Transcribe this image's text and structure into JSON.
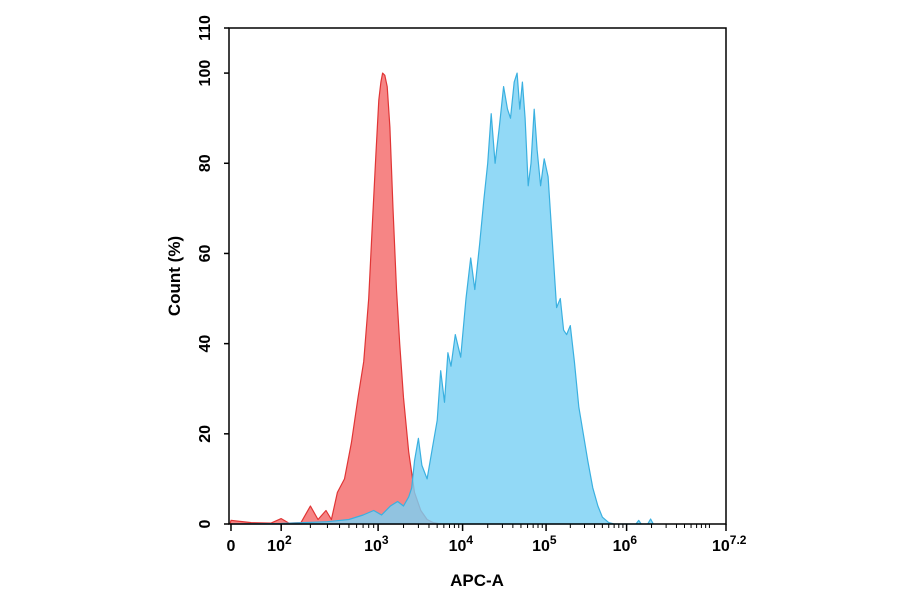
{
  "chart_data": {
    "type": "area",
    "xlabel": "APC-A",
    "ylabel": "Count (%)",
    "x_scale": "biexponential",
    "xlim": [
      -100,
      15848932
    ],
    "ylim": [
      0,
      110
    ],
    "y_ticks": [
      0,
      20,
      40,
      60,
      80,
      100,
      110
    ],
    "y_tick_labels": [
      "0",
      "20",
      "40",
      "60",
      "80",
      "100",
      "110"
    ],
    "x_ticks": [
      0,
      100,
      1000,
      10000,
      100000,
      1000000,
      15848932
    ],
    "x_tick_labels": [
      {
        "base": "0",
        "exp": ""
      },
      {
        "base": "10",
        "exp": "2"
      },
      {
        "base": "10",
        "exp": "3"
      },
      {
        "base": "10",
        "exp": "4"
      },
      {
        "base": "10",
        "exp": "5"
      },
      {
        "base": "10",
        "exp": "6"
      },
      {
        "base": "10",
        "exp": "7.2"
      }
    ],
    "grid": false,
    "legend": "none",
    "series": [
      {
        "color": "#f46a6a",
        "stroke": "#e03535",
        "points": [
          [
            -50,
            0
          ],
          [
            0,
            0.8
          ],
          [
            40,
            0.3
          ],
          [
            80,
            0.2
          ],
          [
            100,
            1.2
          ],
          [
            120,
            0.2
          ],
          [
            160,
            0.3
          ],
          [
            200,
            4
          ],
          [
            240,
            1
          ],
          [
            290,
            3
          ],
          [
            330,
            1
          ],
          [
            380,
            7
          ],
          [
            450,
            10
          ],
          [
            530,
            18
          ],
          [
            620,
            28
          ],
          [
            710,
            36
          ],
          [
            800,
            50
          ],
          [
            880,
            68
          ],
          [
            950,
            82
          ],
          [
            1020,
            94
          ],
          [
            1080,
            98
          ],
          [
            1130,
            100
          ],
          [
            1200,
            99.5
          ],
          [
            1280,
            97
          ],
          [
            1380,
            88
          ],
          [
            1500,
            70
          ],
          [
            1650,
            52
          ],
          [
            1800,
            40
          ],
          [
            2000,
            28
          ],
          [
            2300,
            16
          ],
          [
            2700,
            7
          ],
          [
            3200,
            3
          ],
          [
            3800,
            1
          ],
          [
            4500,
            0.3
          ],
          [
            5500,
            0
          ]
        ]
      },
      {
        "color": "#7ad1f4",
        "stroke": "#3ab0e0",
        "points": [
          [
            -50,
            0
          ],
          [
            100,
            0.1
          ],
          [
            300,
            0.5
          ],
          [
            500,
            1
          ],
          [
            700,
            2
          ],
          [
            900,
            3
          ],
          [
            1100,
            2
          ],
          [
            1400,
            4
          ],
          [
            1700,
            5
          ],
          [
            2000,
            4
          ],
          [
            2300,
            6
          ],
          [
            2500,
            8
          ],
          [
            2700,
            14
          ],
          [
            3000,
            19
          ],
          [
            3300,
            13
          ],
          [
            3800,
            10
          ],
          [
            4400,
            17
          ],
          [
            5000,
            23
          ],
          [
            5500,
            34
          ],
          [
            6100,
            27
          ],
          [
            6700,
            38
          ],
          [
            7300,
            35
          ],
          [
            8200,
            42
          ],
          [
            9500,
            37
          ],
          [
            11000,
            50
          ],
          [
            12500,
            59
          ],
          [
            14000,
            52
          ],
          [
            16000,
            62
          ],
          [
            18000,
            72
          ],
          [
            20000,
            80
          ],
          [
            22000,
            91
          ],
          [
            24500,
            80
          ],
          [
            27500,
            88
          ],
          [
            31000,
            97
          ],
          [
            34500,
            92
          ],
          [
            37500,
            90
          ],
          [
            41500,
            98
          ],
          [
            45000,
            100
          ],
          [
            48500,
            92
          ],
          [
            52000,
            98
          ],
          [
            56000,
            90
          ],
          [
            61000,
            75
          ],
          [
            66000,
            80
          ],
          [
            72000,
            92
          ],
          [
            78000,
            83
          ],
          [
            86000,
            75
          ],
          [
            95000,
            81
          ],
          [
            106000,
            77
          ],
          [
            120000,
            62
          ],
          [
            135000,
            48
          ],
          [
            150000,
            50
          ],
          [
            165000,
            43
          ],
          [
            180000,
            42
          ],
          [
            200000,
            44
          ],
          [
            225000,
            36
          ],
          [
            255000,
            26
          ],
          [
            290000,
            20
          ],
          [
            330000,
            14
          ],
          [
            380000,
            8
          ],
          [
            440000,
            4
          ],
          [
            500000,
            1.5
          ],
          [
            600000,
            0.3
          ],
          [
            700000,
            0
          ],
          [
            1300000,
            0
          ],
          [
            1400000,
            0.8
          ],
          [
            1500000,
            0
          ],
          [
            1800000,
            0
          ],
          [
            1950000,
            1.1
          ],
          [
            2100000,
            0
          ]
        ]
      }
    ]
  }
}
